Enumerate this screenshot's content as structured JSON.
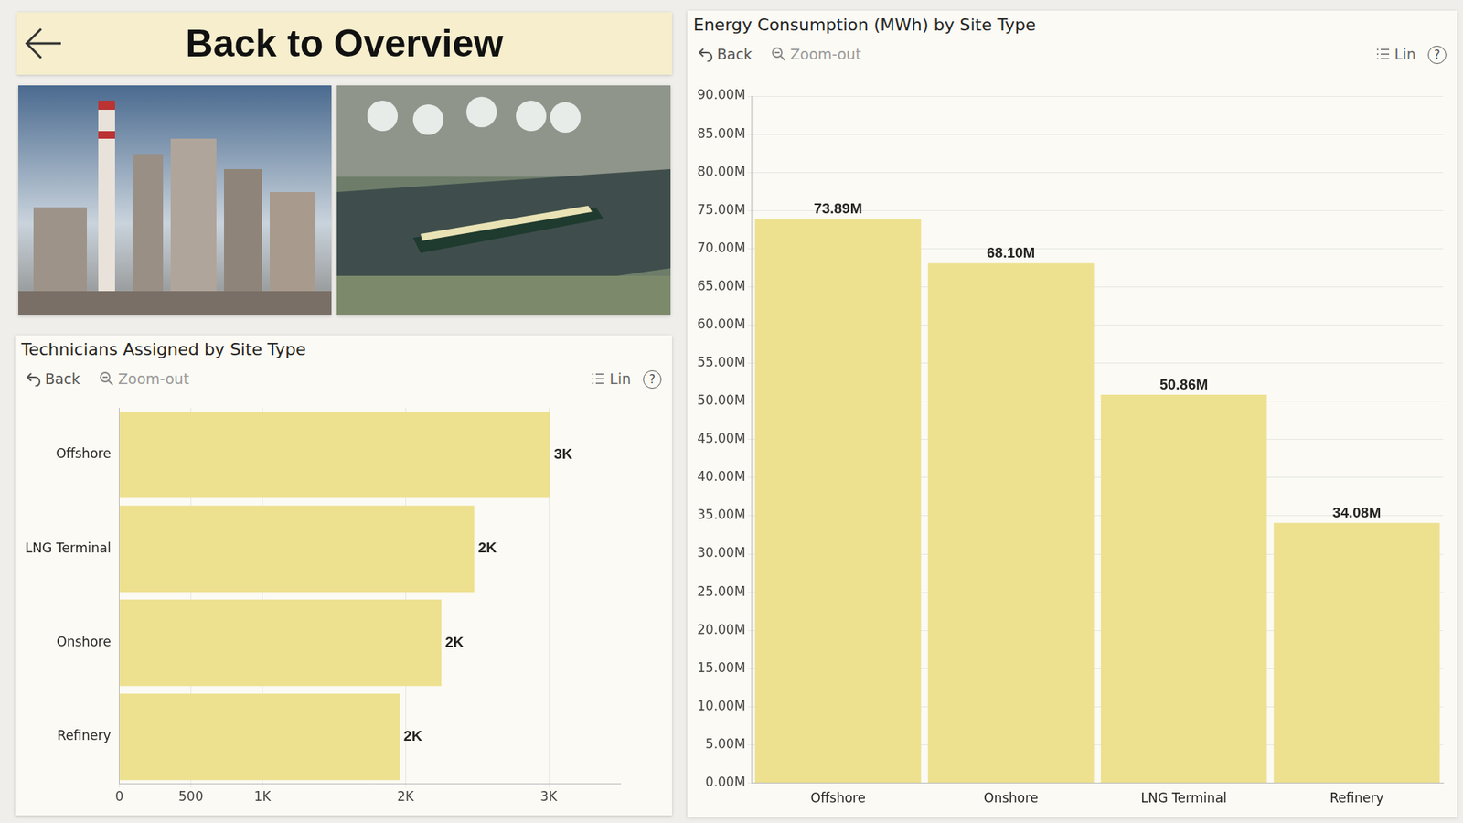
{
  "header": {
    "title": "Back to Overview"
  },
  "toolbar": {
    "back": "Back",
    "zoom": "Zoom-out",
    "lines": "Lin",
    "help": "?"
  },
  "chart_data": [
    {
      "type": "bar",
      "title": "Technicians Assigned by Site Type",
      "orientation": "horizontal",
      "categories": [
        "Offshore",
        "LNG Terminal",
        "Onshore",
        "Refinery"
      ],
      "values": [
        3010,
        2480,
        2250,
        1960
      ],
      "value_labels": [
        "3K",
        "2K",
        "2K",
        "2K"
      ],
      "color": "#ede08f",
      "xlim": [
        0,
        3500
      ],
      "xticks": [
        0,
        500,
        {
          "value": 1000,
          "label": "1K"
        },
        {
          "value": 2000,
          "label": "2K"
        },
        {
          "value": 3000,
          "label": "3K"
        }
      ],
      "grid": true,
      "data_labels": true
    },
    {
      "type": "bar",
      "title": "Energy Consumption (MWh) by Site Type",
      "categories": [
        "Offshore",
        "Onshore",
        "LNG Terminal",
        "Refinery"
      ],
      "values": [
        73890000,
        68100000,
        50860000,
        34080000
      ],
      "value_labels": [
        "73.89M",
        "68.10M",
        "50.86M",
        "34.08M"
      ],
      "color": "#ede08f",
      "ylim": [
        0,
        90000000
      ],
      "yticks": [
        {
          "value": 0,
          "label": "0.00M"
        },
        {
          "value": 5000000,
          "label": "5.00M"
        },
        {
          "value": 10000000,
          "label": "10.00M"
        },
        {
          "value": 15000000,
          "label": "15.00M"
        },
        {
          "value": 20000000,
          "label": "20.00M"
        },
        {
          "value": 25000000,
          "label": "25.00M"
        },
        {
          "value": 30000000,
          "label": "30.00M"
        },
        {
          "value": 35000000,
          "label": "35.00M"
        },
        {
          "value": 40000000,
          "label": "40.00M"
        },
        {
          "value": 45000000,
          "label": "45.00M"
        },
        {
          "value": 50000000,
          "label": "50.00M"
        },
        {
          "value": 55000000,
          "label": "55.00M"
        },
        {
          "value": 60000000,
          "label": "60.00M"
        },
        {
          "value": 65000000,
          "label": "65.00M"
        },
        {
          "value": 70000000,
          "label": "70.00M"
        },
        {
          "value": 75000000,
          "label": "75.00M"
        },
        {
          "value": 80000000,
          "label": "80.00M"
        },
        {
          "value": 85000000,
          "label": "85.00M"
        },
        {
          "value": 90000000,
          "label": "90.00M"
        }
      ],
      "grid": true,
      "data_labels": true
    }
  ]
}
